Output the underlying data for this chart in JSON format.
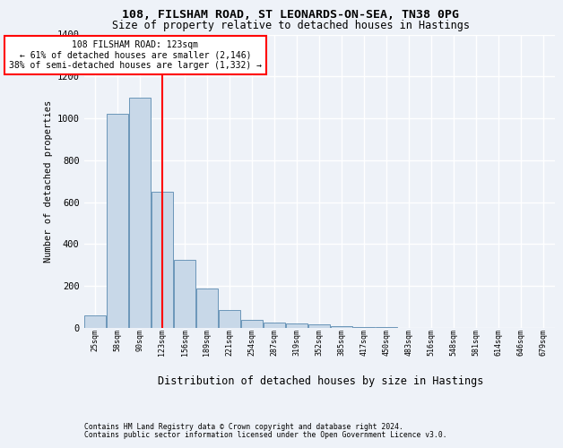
{
  "title1": "108, FILSHAM ROAD, ST LEONARDS-ON-SEA, TN38 0PG",
  "title2": "Size of property relative to detached houses in Hastings",
  "xlabel": "Distribution of detached houses by size in Hastings",
  "ylabel": "Number of detached properties",
  "footnote1": "Contains HM Land Registry data © Crown copyright and database right 2024.",
  "footnote2": "Contains public sector information licensed under the Open Government Licence v3.0.",
  "annotation_line1": "108 FILSHAM ROAD: 123sqm",
  "annotation_line2": "← 61% of detached houses are smaller (2,146)",
  "annotation_line3": "38% of semi-detached houses are larger (1,332) →",
  "bar_color": "#c8d8e8",
  "bar_edge_color": "#5a8ab0",
  "red_line_x": 3,
  "categories": [
    "25sqm",
    "58sqm",
    "90sqm",
    "123sqm",
    "156sqm",
    "189sqm",
    "221sqm",
    "254sqm",
    "287sqm",
    "319sqm",
    "352sqm",
    "385sqm",
    "417sqm",
    "450sqm",
    "483sqm",
    "516sqm",
    "548sqm",
    "581sqm",
    "614sqm",
    "646sqm",
    "679sqm"
  ],
  "values": [
    60,
    1020,
    1100,
    650,
    325,
    190,
    85,
    40,
    25,
    20,
    15,
    8,
    4,
    3,
    2,
    1,
    1,
    1,
    1,
    1,
    1
  ],
  "ylim": [
    0,
    1400
  ],
  "yticks": [
    0,
    200,
    400,
    600,
    800,
    1000,
    1200,
    1400
  ],
  "bg_color": "#eef2f8",
  "plot_bg_color": "#eef2f8",
  "grid_color": "white",
  "annotation_box_color": "white",
  "annotation_border_color": "red",
  "red_line_color": "red",
  "title1_fontsize": 9.5,
  "title2_fontsize": 8.5,
  "ylabel_fontsize": 7.5,
  "xlabel_fontsize": 8.5,
  "ytick_fontsize": 7.5,
  "xtick_fontsize": 6.0,
  "annotation_fontsize": 7.0,
  "footnote_fontsize": 5.8
}
